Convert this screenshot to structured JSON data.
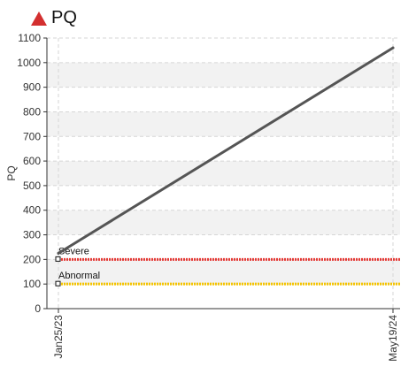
{
  "header": {
    "title": "PQ",
    "alert_icon": "warning-triangle-icon",
    "alert_color": "#d32f2f"
  },
  "chart_data": {
    "type": "line",
    "title": "PQ",
    "ylabel": "PQ",
    "xlabel": "",
    "ylim": [
      0,
      1100
    ],
    "yticks": [
      0,
      100,
      200,
      300,
      400,
      500,
      600,
      700,
      800,
      900,
      1000,
      1100
    ],
    "x_tick_labels": [
      "Jan25/23",
      "May19/24"
    ],
    "grid": true,
    "series": [
      {
        "color": "#555555",
        "points": [
          {
            "x": "Jan25/23",
            "y": 225
          },
          {
            "x": "May19/24",
            "y": 1060
          }
        ]
      }
    ],
    "reference_lines": [
      {
        "name": "Severe",
        "value": 200,
        "color": "#e53935"
      },
      {
        "name": "Abnormal",
        "value": 100,
        "color": "#f5c400"
      }
    ]
  }
}
